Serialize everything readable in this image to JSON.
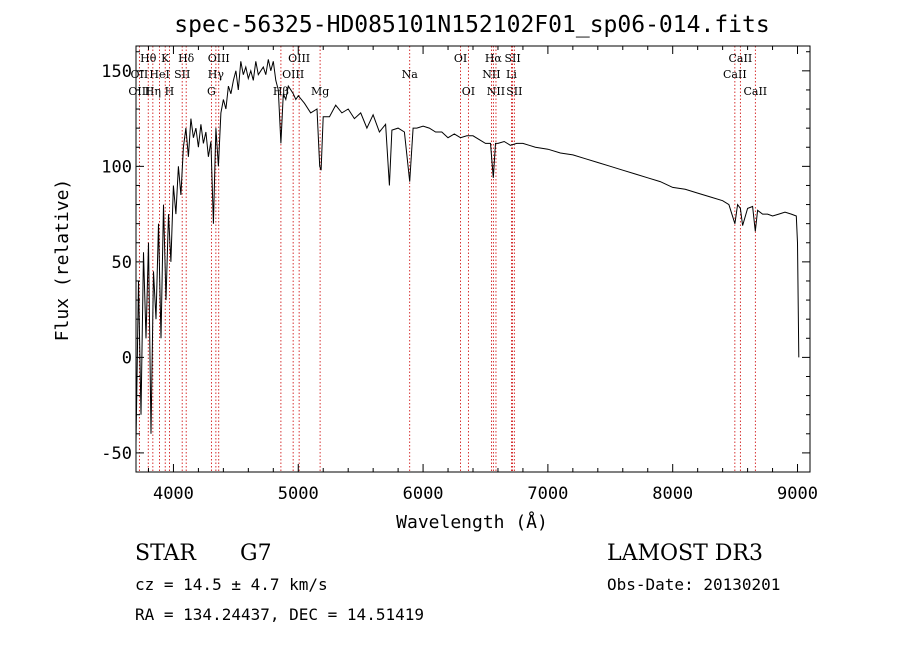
{
  "chart_data": {
    "type": "line",
    "title": "spec-56325-HD085101N152102F01_sp06-014.fits",
    "xlabel": "Wavelength (Å)",
    "ylabel": "Flux (relative)",
    "xlim": [
      3700,
      9100
    ],
    "ylim": [
      -60,
      163
    ],
    "x_ticks": [
      4000,
      5000,
      6000,
      7000,
      8000,
      9000
    ],
    "y_ticks": [
      -50,
      0,
      50,
      100,
      150
    ],
    "grid": false,
    "line_color": "#000000",
    "marker_color": "#cc0000",
    "series": [
      {
        "x": [
          3700,
          3720,
          3740,
          3760,
          3780,
          3800,
          3820,
          3840,
          3860,
          3880,
          3900,
          3920,
          3940,
          3960,
          3980,
          4000,
          4020,
          4040,
          4060,
          4080,
          4100,
          4120,
          4140,
          4160,
          4180,
          4200,
          4220,
          4240,
          4260,
          4280,
          4300,
          4320,
          4340,
          4360,
          4380,
          4400,
          4420,
          4440,
          4460,
          4480,
          4500,
          4520,
          4540,
          4560,
          4580,
          4600,
          4620,
          4640,
          4660,
          4680,
          4700,
          4720,
          4740,
          4760,
          4780,
          4800,
          4820,
          4840,
          4861,
          4880,
          4900,
          4920,
          4940,
          4960,
          4980,
          5000,
          5050,
          5100,
          5150,
          5172,
          5183,
          5200,
          5250,
          5300,
          5350,
          5400,
          5450,
          5500,
          5550,
          5600,
          5650,
          5700,
          5730,
          5750,
          5800,
          5850,
          5893,
          5920,
          5950,
          6000,
          6050,
          6100,
          6150,
          6200,
          6250,
          6300,
          6350,
          6400,
          6450,
          6500,
          6540,
          6563,
          6580,
          6600,
          6650,
          6700,
          6750,
          6800,
          6850,
          6900,
          7000,
          7100,
          7200,
          7300,
          7400,
          7500,
          7600,
          7700,
          7800,
          7900,
          8000,
          8100,
          8200,
          8300,
          8400,
          8450,
          8498,
          8520,
          8542,
          8560,
          8600,
          8640,
          8662,
          8680,
          8720,
          8760,
          8800,
          8850,
          8900,
          8950,
          8990,
          9000,
          9010
        ],
        "y": [
          -45,
          40,
          -30,
          55,
          10,
          60,
          -40,
          45,
          20,
          70,
          10,
          80,
          30,
          75,
          50,
          90,
          75,
          100,
          85,
          110,
          120,
          105,
          125,
          115,
          120,
          110,
          122,
          112,
          118,
          105,
          113,
          70,
          120,
          100,
          128,
          135,
          130,
          142,
          138,
          145,
          150,
          140,
          155,
          148,
          152,
          146,
          150,
          145,
          155,
          148,
          150,
          152,
          148,
          156,
          150,
          155,
          145,
          140,
          112,
          138,
          135,
          142,
          140,
          138,
          135,
          137,
          133,
          128,
          130,
          100,
          98,
          126,
          126,
          132,
          128,
          130,
          125,
          128,
          120,
          127,
          118,
          122,
          90,
          119,
          120,
          118,
          92,
          120,
          120,
          121,
          120,
          118,
          118,
          115,
          117,
          115,
          116,
          116,
          114,
          112,
          112,
          94,
          112,
          112,
          113,
          111,
          112,
          112,
          111,
          110,
          109,
          107,
          106,
          104,
          102,
          100,
          98,
          96,
          94,
          92,
          89,
          88,
          86,
          84,
          82,
          80,
          70,
          80,
          78,
          69,
          78,
          79,
          66,
          77,
          75,
          75,
          74,
          75,
          76,
          75,
          74,
          60,
          0
        ]
      }
    ],
    "spectral_lines": [
      {
        "label": "Hθ",
        "wl": 3798,
        "row": 0
      },
      {
        "label": "OII",
        "wl": 3727,
        "row": 1
      },
      {
        "label": "OIII",
        "wl": 3727,
        "row": 2
      },
      {
        "label": "HeI",
        "wl": 3889,
        "row": 1
      },
      {
        "label": "Hη",
        "wl": 3835,
        "row": 2
      },
      {
        "label": "K",
        "wl": 3934,
        "row": 0
      },
      {
        "label": "SII",
        "wl": 4070,
        "row": 1
      },
      {
        "label": "H",
        "wl": 3968,
        "row": 2
      },
      {
        "label": "Hδ",
        "wl": 4102,
        "row": 0
      },
      {
        "label": "OIII",
        "wl": 4363,
        "row": 0
      },
      {
        "label": "Hγ",
        "wl": 4340,
        "row": 1
      },
      {
        "label": "G",
        "wl": 4304,
        "row": 2
      },
      {
        "label": "OIII",
        "wl": 5007,
        "row": 0
      },
      {
        "label": "OIII",
        "wl": 4959,
        "row": 1
      },
      {
        "label": "Hβ",
        "wl": 4861,
        "row": 2
      },
      {
        "label": "Mg",
        "wl": 5175,
        "row": 2
      },
      {
        "label": "Na",
        "wl": 5893,
        "row": 1
      },
      {
        "label": "OI",
        "wl": 6300,
        "row": 0
      },
      {
        "label": "OI",
        "wl": 6363,
        "row": 2
      },
      {
        "label": "Hα",
        "wl": 6563,
        "row": 0
      },
      {
        "label": "SII",
        "wl": 6717,
        "row": 0
      },
      {
        "label": "NII",
        "wl": 6548,
        "row": 1
      },
      {
        "label": "Li",
        "wl": 6708,
        "row": 1
      },
      {
        "label": "NII",
        "wl": 6584,
        "row": 2
      },
      {
        "label": "SII",
        "wl": 6731,
        "row": 2
      },
      {
        "label": "CaII",
        "wl": 8542,
        "row": 0
      },
      {
        "label": "CaII",
        "wl": 8498,
        "row": 1
      },
      {
        "label": "CaII",
        "wl": 8662,
        "row": 2
      }
    ]
  },
  "info": {
    "object_class": "STAR",
    "subclass": "G7",
    "survey": "LAMOST DR3",
    "cz": "cz = 14.5 ± 4.7 km/s",
    "obs_date": "Obs-Date: 20130201",
    "coords": "RA = 134.24437, DEC =  14.51419"
  }
}
